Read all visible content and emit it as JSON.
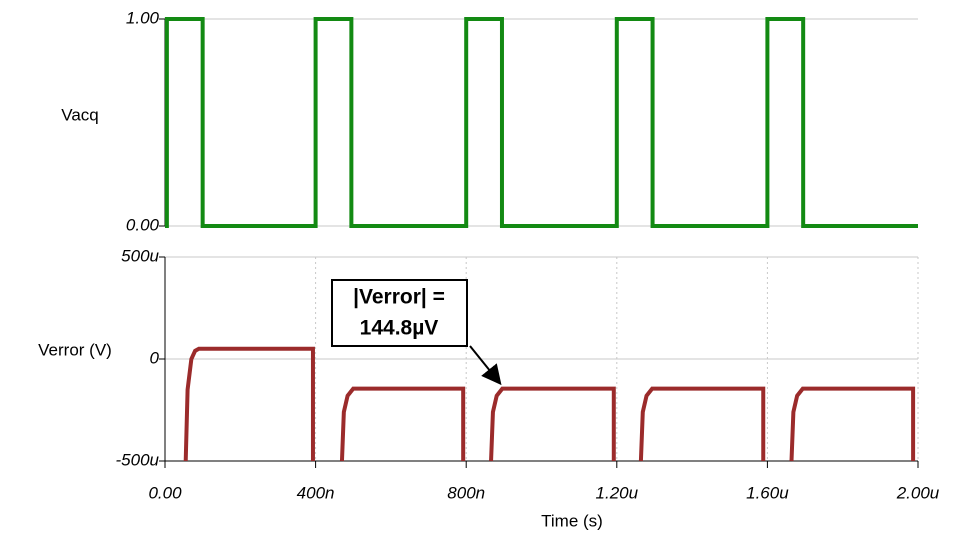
{
  "chart_data": [
    {
      "type": "line",
      "ylabel": "Vacq",
      "color": "#138a13",
      "grid": true,
      "xlim": [
        0,
        2e-06
      ],
      "ylim": [
        0,
        1
      ],
      "yticks": [
        {
          "value": 1,
          "label": "1.00"
        },
        {
          "value": 0,
          "label": "0.00"
        }
      ],
      "x": [
        0,
        5e-09,
        5e-09,
        1e-07,
        1e-07,
        4e-07,
        4e-07,
        4.95e-07,
        4.95e-07,
        8e-07,
        8e-07,
        8.95e-07,
        8.95e-07,
        1.2e-06,
        1.2e-06,
        1.295e-06,
        1.295e-06,
        1.6e-06,
        1.6e-06,
        1.695e-06,
        1.695e-06,
        2e-06
      ],
      "values": [
        0,
        0,
        1,
        1,
        0,
        0,
        1,
        1,
        0,
        0,
        1,
        1,
        0,
        0,
        1,
        1,
        0,
        0,
        1,
        1,
        0,
        0
      ]
    },
    {
      "type": "line",
      "ylabel": "Verror (V)",
      "xlabel": "Time (s)",
      "color": "#9b2b2b",
      "grid": true,
      "xlim": [
        0,
        2e-06
      ],
      "ylim": [
        -0.0005,
        0.0005
      ],
      "xticks": [
        {
          "value": 0,
          "label": "0.00"
        },
        {
          "value": 4e-07,
          "label": "400n"
        },
        {
          "value": 8e-07,
          "label": "800n"
        },
        {
          "value": 1.2e-06,
          "label": "1.20u"
        },
        {
          "value": 1.6e-06,
          "label": "1.60u"
        },
        {
          "value": 2e-06,
          "label": "2.00u"
        }
      ],
      "yticks": [
        {
          "value": 0.0005,
          "label": "500u"
        },
        0,
        {
          "value": -0.0005,
          "label": "-500u"
        }
      ],
      "annotation": [
        "|Verror| =",
        "144.8µV"
      ],
      "x": [
        5.5e-08,
        6e-08,
        7e-08,
        8e-08,
        9e-08,
        3.93e-07,
        3.93e-07,
        null,
        4.7e-07,
        4.75e-07,
        4.85e-07,
        5e-07,
        7.92e-07,
        7.92e-07,
        null,
        8.66e-07,
        8.71e-07,
        8.81e-07,
        8.96e-07,
        1.192e-06,
        1.192e-06,
        null,
        1.264e-06,
        1.269e-06,
        1.279e-06,
        1.294e-06,
        1.589e-06,
        1.589e-06,
        null,
        1.664e-06,
        1.669e-06,
        1.679e-06,
        1.694e-06,
        1.987e-06,
        1.987e-06
      ],
      "values": [
        -0.0005,
        -0.00015,
        0,
        4e-05,
        5e-05,
        5e-05,
        -0.0005,
        null,
        -0.0005,
        -0.00026,
        -0.00018,
        -0.000145,
        -0.000145,
        -0.0005,
        null,
        -0.0005,
        -0.00026,
        -0.00018,
        -0.000145,
        -0.000145,
        -0.0005,
        null,
        -0.0005,
        -0.00026,
        -0.00018,
        -0.000145,
        -0.000145,
        -0.0005,
        null,
        -0.0005,
        -0.00026,
        -0.00018,
        -0.000145,
        -0.000145,
        -0.0005
      ]
    }
  ]
}
